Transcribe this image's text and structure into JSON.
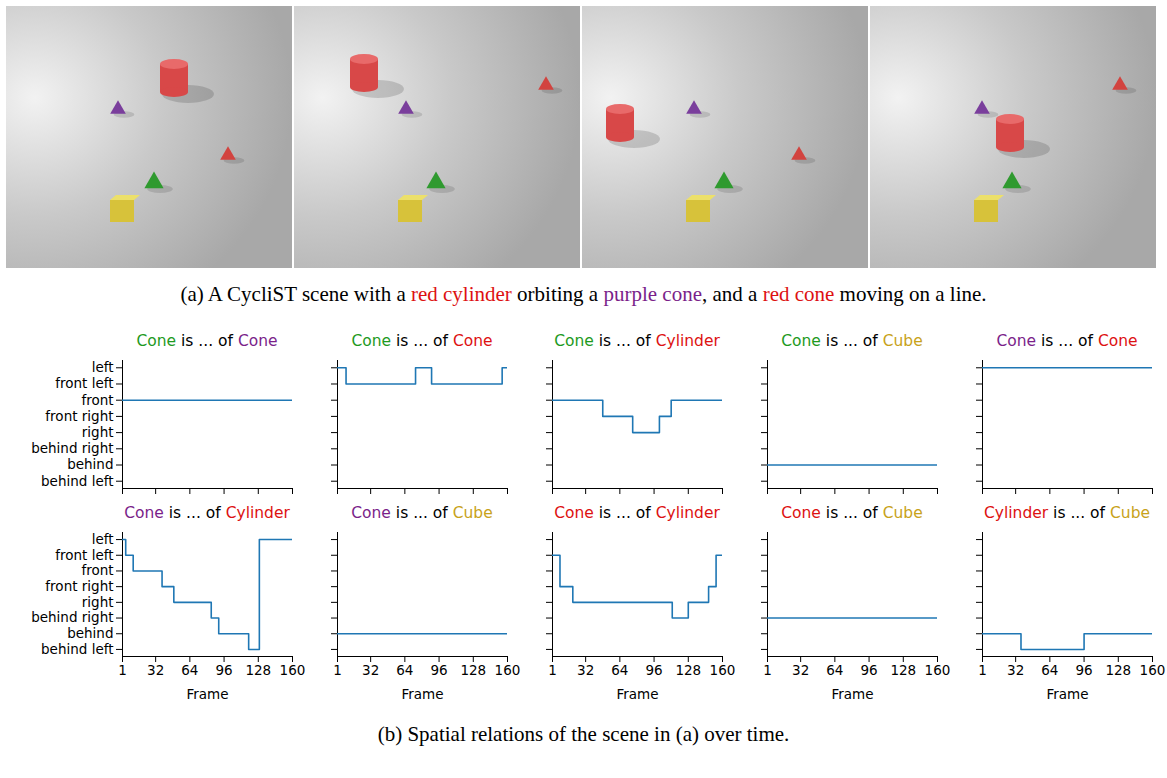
{
  "figure": {
    "caption_a": [
      {
        "text": "(a) A CycliST scene with a "
      },
      {
        "text": "red cylinder",
        "color": "#dd1111"
      },
      {
        "text": " orbiting a "
      },
      {
        "text": "purple cone",
        "color": "#7b1f8a"
      },
      {
        "text": ", and a "
      },
      {
        "text": "red cone",
        "color": "#dd1111"
      },
      {
        "text": " moving on a line."
      }
    ],
    "caption_b": "(b) Spatial relations of the scene in (a) over time."
  },
  "chart_data": [
    {
      "type": "line",
      "title": [
        {
          "text": "Cone",
          "color": "#1e9a1e"
        },
        {
          "text": " is ... of "
        },
        {
          "text": "Cone",
          "color": "#7b1f8a"
        }
      ],
      "y_categories": [
        "left",
        "front left",
        "front",
        "front right",
        "right",
        "behind right",
        "behind",
        "behind left"
      ],
      "x": [
        1,
        160
      ],
      "values": [
        "front",
        "front"
      ],
      "color": "#1f77b4",
      "line_style": "step",
      "xlim": [
        1,
        160
      ],
      "xticks": [
        1,
        32,
        64,
        96,
        128,
        160
      ],
      "tick_labels": "y"
    },
    {
      "type": "line",
      "title": [
        {
          "text": "Cone",
          "color": "#1e9a1e"
        },
        {
          "text": " is ... of "
        },
        {
          "text": "Cone",
          "color": "#dd1111"
        }
      ],
      "y_categories": [
        "left",
        "front left",
        "front",
        "front right",
        "right",
        "behind right",
        "behind",
        "behind left"
      ],
      "x": [
        1,
        9,
        74,
        89,
        155,
        160
      ],
      "values": [
        "left",
        "front left",
        "left",
        "front left",
        "left",
        "left"
      ],
      "color": "#1f77b4",
      "line_style": "step",
      "xlim": [
        1,
        160
      ],
      "xticks": [
        1,
        32,
        64,
        96,
        128,
        160
      ],
      "tick_labels": false
    },
    {
      "type": "line",
      "title": [
        {
          "text": "Cone",
          "color": "#1e9a1e"
        },
        {
          "text": " is ... of "
        },
        {
          "text": "Cylinder",
          "color": "#dd1111"
        }
      ],
      "y_categories": [
        "left",
        "front left",
        "front",
        "front right",
        "right",
        "behind right",
        "behind",
        "behind left"
      ],
      "x": [
        1,
        48,
        76,
        101,
        112,
        160
      ],
      "values": [
        "front",
        "front right",
        "right",
        "front right",
        "front",
        "front"
      ],
      "color": "#1f77b4",
      "line_style": "step",
      "xlim": [
        1,
        160
      ],
      "xticks": [
        1,
        32,
        64,
        96,
        128,
        160
      ],
      "tick_labels": false
    },
    {
      "type": "line",
      "title": [
        {
          "text": "Cone",
          "color": "#1e9a1e"
        },
        {
          "text": " is ... of "
        },
        {
          "text": "Cube",
          "color": "#c8a21a"
        }
      ],
      "y_categories": [
        "left",
        "front left",
        "front",
        "front right",
        "right",
        "behind right",
        "behind",
        "behind left"
      ],
      "x": [
        1,
        160
      ],
      "values": [
        "behind",
        "behind"
      ],
      "color": "#1f77b4",
      "line_style": "step",
      "xlim": [
        1,
        160
      ],
      "xticks": [
        1,
        32,
        64,
        96,
        128,
        160
      ],
      "tick_labels": false
    },
    {
      "type": "line",
      "title": [
        {
          "text": "Cone",
          "color": "#7b1f8a"
        },
        {
          "text": " is ... of "
        },
        {
          "text": "Cone",
          "color": "#dd1111"
        }
      ],
      "y_categories": [
        "left",
        "front left",
        "front",
        "front right",
        "right",
        "behind right",
        "behind",
        "behind left"
      ],
      "x": [
        1,
        160
      ],
      "values": [
        "left",
        "left"
      ],
      "color": "#1f77b4",
      "line_style": "step",
      "xlim": [
        1,
        160
      ],
      "xticks": [
        1,
        32,
        64,
        96,
        128,
        160
      ],
      "tick_labels": false
    },
    {
      "type": "line",
      "title": [
        {
          "text": "Cone",
          "color": "#7b1f8a"
        },
        {
          "text": " is ... of "
        },
        {
          "text": "Cylinder",
          "color": "#dd1111"
        }
      ],
      "y_categories": [
        "left",
        "front left",
        "front",
        "front right",
        "right",
        "behind right",
        "behind",
        "behind left"
      ],
      "x": [
        1,
        4,
        11,
        38,
        49,
        84,
        91,
        119,
        129,
        160
      ],
      "values": [
        "left",
        "front left",
        "front",
        "front right",
        "right",
        "behind right",
        "behind",
        "behind left",
        "left",
        "left"
      ],
      "color": "#1f77b4",
      "line_style": "step",
      "xlim": [
        1,
        160
      ],
      "xticks": [
        1,
        32,
        64,
        96,
        128,
        160
      ],
      "xlabel": "Frame",
      "tick_labels": true
    },
    {
      "type": "line",
      "title": [
        {
          "text": "Cone",
          "color": "#7b1f8a"
        },
        {
          "text": " is ... of "
        },
        {
          "text": "Cube",
          "color": "#c8a21a"
        }
      ],
      "y_categories": [
        "left",
        "front left",
        "front",
        "front right",
        "right",
        "behind right",
        "behind",
        "behind left"
      ],
      "x": [
        1,
        160
      ],
      "values": [
        "behind",
        "behind"
      ],
      "color": "#1f77b4",
      "line_style": "step",
      "xlim": [
        1,
        160
      ],
      "xticks": [
        1,
        32,
        64,
        96,
        128,
        160
      ],
      "xlabel": "Frame",
      "tick_labels": "x"
    },
    {
      "type": "line",
      "title": [
        {
          "text": "Cone",
          "color": "#dd1111"
        },
        {
          "text": " is ... of "
        },
        {
          "text": "Cylinder",
          "color": "#dd1111"
        }
      ],
      "y_categories": [
        "left",
        "front left",
        "front",
        "front right",
        "right",
        "behind right",
        "behind",
        "behind left"
      ],
      "x": [
        1,
        8,
        20,
        113,
        128,
        147,
        154,
        160
      ],
      "values": [
        "front left",
        "front right",
        "right",
        "behind right",
        "right",
        "front right",
        "front left",
        "front left"
      ],
      "color": "#1f77b4",
      "line_style": "step",
      "xlim": [
        1,
        160
      ],
      "xticks": [
        1,
        32,
        64,
        96,
        128,
        160
      ],
      "xlabel": "Frame",
      "tick_labels": "x"
    },
    {
      "type": "line",
      "title": [
        {
          "text": "Cone",
          "color": "#dd1111"
        },
        {
          "text": " is ... of "
        },
        {
          "text": "Cube",
          "color": "#c8a21a"
        }
      ],
      "y_categories": [
        "left",
        "front left",
        "front",
        "front right",
        "right",
        "behind right",
        "behind",
        "behind left"
      ],
      "x": [
        1,
        160
      ],
      "values": [
        "behind right",
        "behind right"
      ],
      "color": "#1f77b4",
      "line_style": "step",
      "xlim": [
        1,
        160
      ],
      "xticks": [
        1,
        32,
        64,
        96,
        128,
        160
      ],
      "xlabel": "Frame",
      "tick_labels": "x"
    },
    {
      "type": "line",
      "title": [
        {
          "text": "Cylinder",
          "color": "#dd1111"
        },
        {
          "text": " is ... of "
        },
        {
          "text": "Cube",
          "color": "#c8a21a"
        }
      ],
      "y_categories": [
        "left",
        "front left",
        "front",
        "front right",
        "right",
        "behind right",
        "behind",
        "behind left"
      ],
      "x": [
        1,
        37,
        96,
        160
      ],
      "values": [
        "behind",
        "behind left",
        "behind",
        "behind"
      ],
      "color": "#1f77b4",
      "line_style": "step",
      "xlim": [
        1,
        160
      ],
      "xticks": [
        1,
        32,
        64,
        96,
        128,
        160
      ],
      "xlabel": "Frame",
      "tick_labels": "x"
    }
  ]
}
